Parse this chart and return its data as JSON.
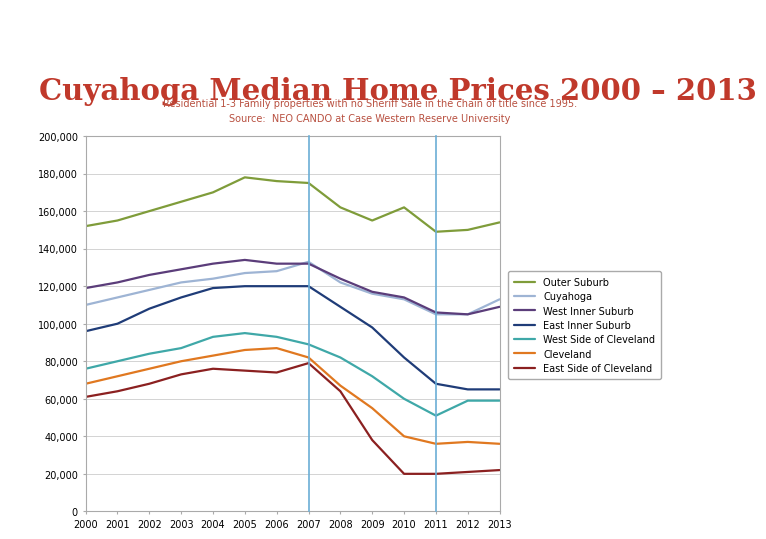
{
  "title": "Cuyahoga Median Home Prices 2000 – 2013",
  "subtitle_line1": "Residential 1-3 Family properties with no Sheriff Sale in the chain of title since 1995.",
  "subtitle_line2": "Source:  NEO CANDO at Case Western Reserve University",
  "title_color": "#C0392B",
  "subtitle_color": "#B85040",
  "gray_band_color": "#8B9EA0",
  "years": [
    2000,
    2001,
    2002,
    2003,
    2004,
    2005,
    2006,
    2007,
    2008,
    2009,
    2010,
    2011,
    2012,
    2013
  ],
  "series": [
    {
      "name": "Outer Suburb",
      "color": "#7F9C3A",
      "values": [
        152000,
        155000,
        160000,
        165000,
        170000,
        178000,
        176000,
        175000,
        162000,
        155000,
        162000,
        149000,
        150000,
        154000
      ]
    },
    {
      "name": "Cuyahoga",
      "color": "#9EB4D4",
      "values": [
        110000,
        114000,
        118000,
        122000,
        124000,
        127000,
        128000,
        133000,
        122000,
        116000,
        113000,
        105000,
        105000,
        113000
      ]
    },
    {
      "name": "West Inner Suburb",
      "color": "#5B3D7A",
      "values": [
        119000,
        122000,
        126000,
        129000,
        132000,
        134000,
        132000,
        132000,
        124000,
        117000,
        114000,
        106000,
        105000,
        109000
      ]
    },
    {
      "name": "East Inner Suburb",
      "color": "#1F3C78",
      "values": [
        96000,
        100000,
        108000,
        114000,
        119000,
        120000,
        120000,
        120000,
        109000,
        98000,
        82000,
        68000,
        65000,
        65000
      ]
    },
    {
      "name": "West Side of Cleveland",
      "color": "#3FA8A8",
      "values": [
        76000,
        80000,
        84000,
        87000,
        93000,
        95000,
        93000,
        89000,
        82000,
        72000,
        60000,
        51000,
        59000,
        59000
      ]
    },
    {
      "name": "Cleveland",
      "color": "#E07820",
      "values": [
        68000,
        72000,
        76000,
        80000,
        83000,
        86000,
        87000,
        82000,
        67000,
        55000,
        40000,
        36000,
        37000,
        36000
      ]
    },
    {
      "name": "East Side of Cleveland",
      "color": "#8B2020",
      "values": [
        61000,
        64000,
        68000,
        73000,
        76000,
        75000,
        74000,
        79000,
        64000,
        38000,
        20000,
        20000,
        21000,
        22000
      ]
    }
  ],
  "vlines": [
    2007,
    2011
  ],
  "vline_color": "#6BAED6",
  "ylim": [
    0,
    200000
  ],
  "yticks": [
    0,
    20000,
    40000,
    60000,
    80000,
    100000,
    120000,
    140000,
    160000,
    180000,
    200000
  ]
}
